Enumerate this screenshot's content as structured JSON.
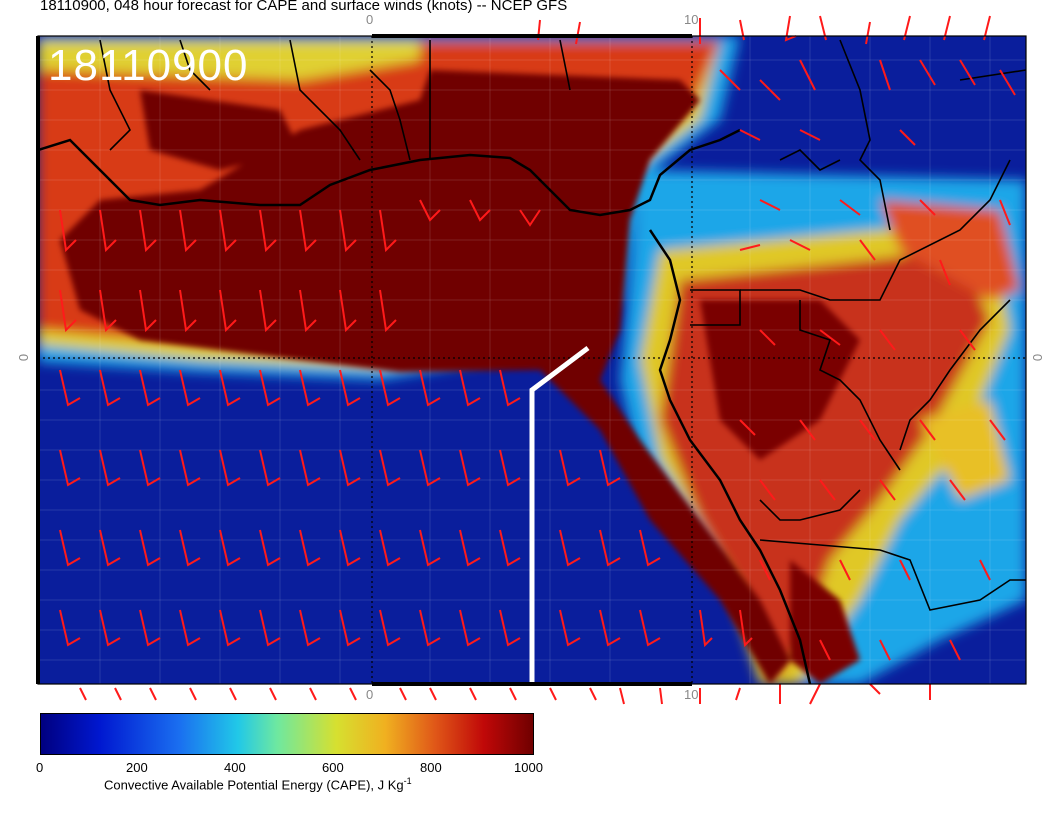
{
  "title": "18110900, 048 hour forecast for CAPE and surface winds (knots) -- NCEP GFS",
  "stamp": "18110900",
  "map": {
    "ticks": {
      "top_left": "0",
      "top_right": "10",
      "bottom_left": "0",
      "bottom_right": "10",
      "left": "0",
      "right": "0"
    },
    "colors": {
      "ocean": "#0a1e9c",
      "high_cape": "#700000",
      "coast": "#000000",
      "barbs": "#ff1a1a",
      "track": "#ffffff"
    }
  },
  "colorbar": {
    "labels": [
      "0",
      "200",
      "400",
      "600",
      "800",
      "1000"
    ],
    "caption": "Convective Available Potential Energy (CAPE), J Kg",
    "caption_sup": "-1"
  }
}
